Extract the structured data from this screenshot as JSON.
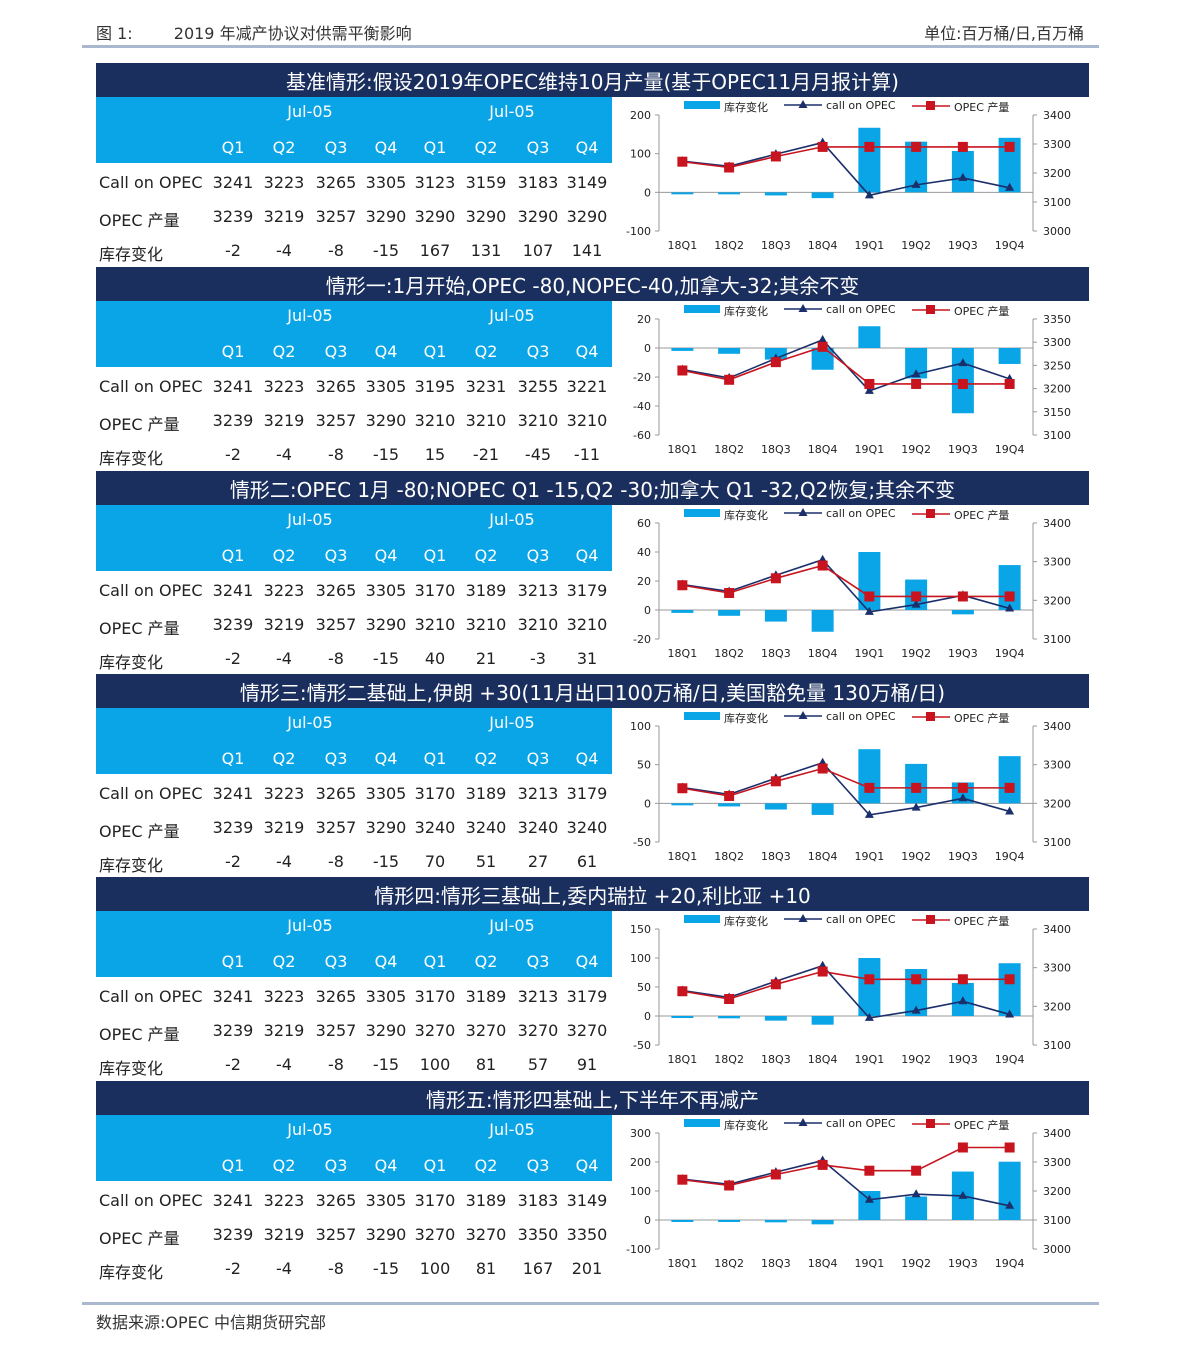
{
  "header": {
    "figure_label": "图 1:",
    "title": "2019 年减产协议对供需平衡影响",
    "unit": "单位:百万桶/日,百万桶"
  },
  "footer": {
    "source": "数据来源:OPEC 中信期货研究部"
  },
  "table_labels": {
    "year_left": "Jul-05",
    "year_right": "Jul-05",
    "quarters": [
      "Q1",
      "Q2",
      "Q3",
      "Q4",
      "Q1",
      "Q2",
      "Q3",
      "Q4"
    ],
    "rows": [
      "Call on OPEC",
      "OPEC 产量",
      "库存变化"
    ]
  },
  "legend": {
    "bar": "库存变化",
    "line1": "call on OPEC",
    "line2": "OPEC 产量"
  },
  "colors": {
    "title_bg": "#1b2f5e",
    "header_blue": "#0aa5e6",
    "bar": "#0aa5e6",
    "line_call": "#1b2f6b",
    "line_opec": "#c8141e"
  },
  "scenarios": [
    {
      "title": "基准情形:假设2019年OPEC维持10月产量(基于OPEC11月月报计算)",
      "call": [
        3241,
        3223,
        3265,
        3305,
        3123,
        3159,
        3183,
        3149
      ],
      "opec": [
        3239,
        3219,
        3257,
        3290,
        3290,
        3290,
        3290,
        3290
      ],
      "stock": [
        -2,
        -4,
        -8,
        -15,
        167,
        131,
        107,
        141
      ],
      "yl": [
        "200",
        "100",
        "0",
        "-100"
      ],
      "yr": [
        "3400",
        "3300",
        "3200",
        "3100",
        "3000"
      ]
    },
    {
      "title": "情形一:1月开始,OPEC -80,NOPEC-40,加拿大-32;其余不变",
      "call": [
        3241,
        3223,
        3265,
        3305,
        3195,
        3231,
        3255,
        3221
      ],
      "opec": [
        3239,
        3219,
        3257,
        3290,
        3210,
        3210,
        3210,
        3210
      ],
      "stock": [
        -2,
        -4,
        -8,
        -15,
        15,
        -21,
        -45,
        -11
      ],
      "yl": [
        "20",
        "0",
        "-20",
        "-40",
        "-60"
      ],
      "yr": [
        "3350",
        "3300",
        "3250",
        "3200",
        "3150",
        "3100"
      ]
    },
    {
      "title": "情形二:OPEC 1月 -80;NOPEC Q1 -15,Q2 -30;加拿大 Q1 -32,Q2恢复;其余不变",
      "call": [
        3241,
        3223,
        3265,
        3305,
        3170,
        3189,
        3213,
        3179
      ],
      "opec": [
        3239,
        3219,
        3257,
        3290,
        3210,
        3210,
        3210,
        3210
      ],
      "stock": [
        -2,
        -4,
        -8,
        -15,
        40,
        21,
        -3,
        31
      ],
      "yl": [
        "60",
        "40",
        "20",
        "0",
        "-20"
      ],
      "yr": [
        "3400",
        "3300",
        "3200",
        "3100"
      ]
    },
    {
      "title": "情形三:情形二基础上,伊朗 +30(11月出口100万桶/日,美国豁免量 130万桶/日)",
      "call": [
        3241,
        3223,
        3265,
        3305,
        3170,
        3189,
        3213,
        3179
      ],
      "opec": [
        3239,
        3219,
        3257,
        3290,
        3240,
        3240,
        3240,
        3240
      ],
      "stock": [
        -2,
        -4,
        -8,
        -15,
        70,
        51,
        27,
        61
      ],
      "yl": [
        "100",
        "50",
        "0",
        "-50"
      ],
      "yr": [
        "3400",
        "3300",
        "3200",
        "3100"
      ]
    },
    {
      "title": "情形四:情形三基础上,委内瑞拉 +20,利比亚 +10",
      "call": [
        3241,
        3223,
        3265,
        3305,
        3170,
        3189,
        3213,
        3179
      ],
      "opec": [
        3239,
        3219,
        3257,
        3290,
        3270,
        3270,
        3270,
        3270
      ],
      "stock": [
        -2,
        -4,
        -8,
        -15,
        100,
        81,
        57,
        91
      ],
      "yl": [
        "150",
        "100",
        "50",
        "0",
        "-50"
      ],
      "yr": [
        "3400",
        "3300",
        "3200",
        "3100"
      ]
    },
    {
      "title": "情形五:情形四基础上,下半年不再减产",
      "call": [
        3241,
        3223,
        3265,
        3305,
        3170,
        3189,
        3183,
        3149
      ],
      "opec": [
        3239,
        3219,
        3257,
        3290,
        3270,
        3270,
        3350,
        3350
      ],
      "stock": [
        -2,
        -4,
        -8,
        -15,
        100,
        81,
        167,
        201
      ],
      "yl": [
        "300",
        "200",
        "100",
        "0",
        "-100"
      ],
      "yr": [
        "3400",
        "3300",
        "3200",
        "3100",
        "3000"
      ]
    }
  ],
  "chart_data": [
    {
      "type": "bar+line",
      "categories": [
        "18Q1",
        "18Q2",
        "18Q3",
        "18Q4",
        "19Q1",
        "19Q2",
        "19Q3",
        "19Q4"
      ],
      "series": [
        {
          "name": "库存变化",
          "axis": "left",
          "values": [
            -2,
            -4,
            -8,
            -15,
            167,
            131,
            107,
            141
          ]
        },
        {
          "name": "call on OPEC",
          "axis": "right",
          "values": [
            3241,
            3223,
            3265,
            3305,
            3123,
            3159,
            3183,
            3149
          ]
        },
        {
          "name": "OPEC 产量",
          "axis": "right",
          "values": [
            3239,
            3219,
            3257,
            3290,
            3290,
            3290,
            3290,
            3290
          ]
        }
      ],
      "ylim_left": [
        -100,
        200
      ],
      "ylim_right": [
        3000,
        3400
      ],
      "legend": "top"
    },
    {
      "type": "bar+line",
      "categories": [
        "18Q1",
        "18Q2",
        "18Q3",
        "18Q4",
        "19Q1",
        "19Q2",
        "19Q3",
        "19Q4"
      ],
      "series": [
        {
          "name": "库存变化",
          "axis": "left",
          "values": [
            -2,
            -4,
            -8,
            -15,
            15,
            -21,
            -45,
            -11
          ]
        },
        {
          "name": "call on OPEC",
          "axis": "right",
          "values": [
            3241,
            3223,
            3265,
            3305,
            3195,
            3231,
            3255,
            3221
          ]
        },
        {
          "name": "OPEC 产量",
          "axis": "right",
          "values": [
            3239,
            3219,
            3257,
            3290,
            3210,
            3210,
            3210,
            3210
          ]
        }
      ],
      "ylim_left": [
        -60,
        20
      ],
      "ylim_right": [
        3100,
        3350
      ],
      "legend": "top"
    },
    {
      "type": "bar+line",
      "categories": [
        "18Q1",
        "18Q2",
        "18Q3",
        "18Q4",
        "19Q1",
        "19Q2",
        "19Q3",
        "19Q4"
      ],
      "series": [
        {
          "name": "库存变化",
          "axis": "left",
          "values": [
            -2,
            -4,
            -8,
            -15,
            40,
            21,
            -3,
            31
          ]
        },
        {
          "name": "call on OPEC",
          "axis": "right",
          "values": [
            3241,
            3223,
            3265,
            3305,
            3170,
            3189,
            3213,
            3179
          ]
        },
        {
          "name": "OPEC 产量",
          "axis": "right",
          "values": [
            3239,
            3219,
            3257,
            3290,
            3210,
            3210,
            3210,
            3210
          ]
        }
      ],
      "ylim_left": [
        -20,
        60
      ],
      "ylim_right": [
        3100,
        3400
      ],
      "legend": "top"
    },
    {
      "type": "bar+line",
      "categories": [
        "18Q1",
        "18Q2",
        "18Q3",
        "18Q4",
        "19Q1",
        "19Q2",
        "19Q3",
        "19Q4"
      ],
      "series": [
        {
          "name": "库存变化",
          "axis": "left",
          "values": [
            -2,
            -4,
            -8,
            -15,
            70,
            51,
            27,
            61
          ]
        },
        {
          "name": "call on OPEC",
          "axis": "right",
          "values": [
            3241,
            3223,
            3265,
            3305,
            3170,
            3189,
            3213,
            3179
          ]
        },
        {
          "name": "OPEC 产量",
          "axis": "right",
          "values": [
            3239,
            3219,
            3257,
            3290,
            3240,
            3240,
            3240,
            3240
          ]
        }
      ],
      "ylim_left": [
        -50,
        100
      ],
      "ylim_right": [
        3100,
        3400
      ],
      "legend": "top"
    },
    {
      "type": "bar+line",
      "categories": [
        "18Q1",
        "18Q2",
        "18Q3",
        "18Q4",
        "19Q1",
        "19Q2",
        "19Q3",
        "19Q4"
      ],
      "series": [
        {
          "name": "库存变化",
          "axis": "left",
          "values": [
            -2,
            -4,
            -8,
            -15,
            100,
            81,
            57,
            91
          ]
        },
        {
          "name": "call on OPEC",
          "axis": "right",
          "values": [
            3241,
            3223,
            3265,
            3305,
            3170,
            3189,
            3213,
            3179
          ]
        },
        {
          "name": "OPEC 产量",
          "axis": "right",
          "values": [
            3239,
            3219,
            3257,
            3290,
            3270,
            3270,
            3270,
            3270
          ]
        }
      ],
      "ylim_left": [
        -50,
        150
      ],
      "ylim_right": [
        3100,
        3400
      ],
      "legend": "top"
    },
    {
      "type": "bar+line",
      "categories": [
        "18Q1",
        "18Q2",
        "18Q3",
        "18Q4",
        "19Q1",
        "19Q2",
        "19Q3",
        "19Q4"
      ],
      "series": [
        {
          "name": "库存变化",
          "axis": "left",
          "values": [
            -2,
            -4,
            -8,
            -15,
            100,
            81,
            167,
            201
          ]
        },
        {
          "name": "call on OPEC",
          "axis": "right",
          "values": [
            3241,
            3223,
            3265,
            3305,
            3170,
            3189,
            3183,
            3149
          ]
        },
        {
          "name": "OPEC 产量",
          "axis": "right",
          "values": [
            3239,
            3219,
            3257,
            3290,
            3270,
            3270,
            3350,
            3350
          ]
        }
      ],
      "ylim_left": [
        -100,
        300
      ],
      "ylim_right": [
        3000,
        3400
      ],
      "legend": "top"
    }
  ]
}
